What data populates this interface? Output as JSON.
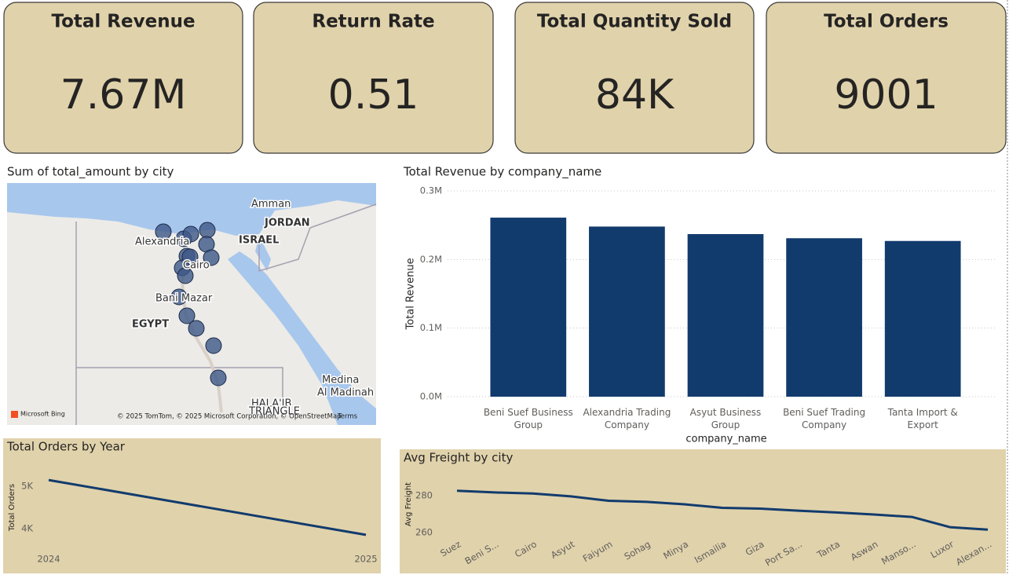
{
  "kpis": [
    {
      "title": "Total Revenue",
      "value": "7.67M"
    },
    {
      "title": "Return Rate",
      "value": "0.51"
    },
    {
      "title": "Total Quantity Sold",
      "value": "84K"
    },
    {
      "title": "Total Orders",
      "value": "9001"
    }
  ],
  "chart_data": [
    {
      "type": "map",
      "title": "Sum of total_amount by city",
      "labels": [
        "Amman",
        "JORDAN",
        "ISRAEL",
        "Alexandria",
        "Cairo",
        "Bani Mazar",
        "EGYPT",
        "Medina",
        "Al Madinah",
        "HALA'IB",
        "TRIANGLE"
      ],
      "attribution": [
        "Microsoft Bing",
        "© 2025 TomTom, © 2025 Microsoft Corporation, © OpenStreetMap",
        "Terms"
      ]
    },
    {
      "type": "bar",
      "title": "Total Revenue by company_name",
      "xlabel": "company_name",
      "ylabel": "Total Revenue",
      "categories": [
        "Beni Suef Business Group",
        "Alexandria Trading Company",
        "Asyut Business Group",
        "Beni Suef Trading Company",
        "Tanta Import & Export"
      ],
      "values": [
        261000,
        248000,
        237000,
        231000,
        227000
      ],
      "color": "#123b6d",
      "ylim": [
        0,
        300000
      ],
      "yticks": [
        {
          "value": 0,
          "label": "0.0M"
        },
        {
          "value": 100000,
          "label": "0.1M"
        },
        {
          "value": 200000,
          "label": "0.2M"
        },
        {
          "value": 300000,
          "label": "0.3M"
        }
      ],
      "grid": true
    },
    {
      "type": "line",
      "title": "Total Orders by Year",
      "ylabel": "Total Orders",
      "x": [
        2024,
        2025
      ],
      "values": [
        5150,
        3851
      ],
      "color": "#123b6d",
      "xlim": [
        2024,
        2025
      ],
      "xticks": [
        2024,
        2025
      ],
      "ylim": [
        3700,
        5300
      ],
      "yticks": [
        {
          "value": 4000,
          "label": "4K"
        },
        {
          "value": 5000,
          "label": "5K"
        }
      ]
    },
    {
      "type": "line",
      "title": "Avg Freight by city",
      "ylabel": "Avg Freight",
      "categories": [
        "Suez",
        "Beni S...",
        "Cairo",
        "Asyut",
        "Faiyum",
        "Sohag",
        "Minya",
        "Ismailia",
        "Giza",
        "Port Sa...",
        "Tanta",
        "Aswan",
        "Manso...",
        "Luxor",
        "Alexan..."
      ],
      "values": [
        282.6,
        281.7,
        281.1,
        279.6,
        277.2,
        276.6,
        275.3,
        273.4,
        273.0,
        271.9,
        270.9,
        269.8,
        268.5,
        263.0,
        261.7
      ],
      "color": "#123b6d",
      "ylim": [
        255,
        288
      ],
      "yticks": [
        260,
        280
      ]
    }
  ]
}
